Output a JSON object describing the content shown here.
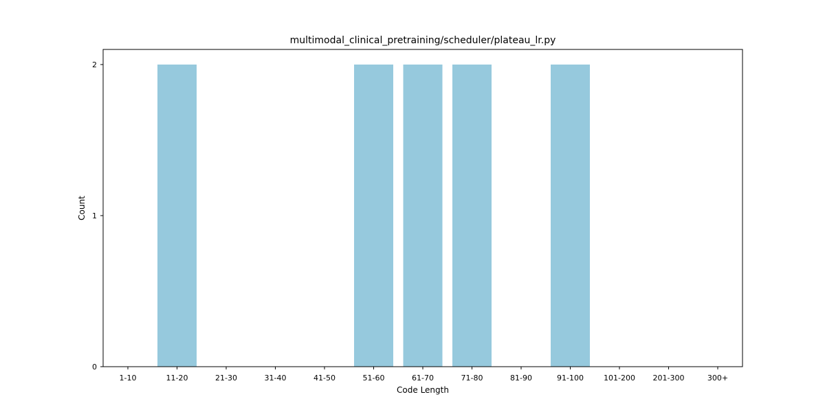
{
  "chart_data": {
    "type": "bar",
    "title": "multimodal_clinical_pretraining/scheduler/plateau_lr.py",
    "xlabel": "Code Length",
    "ylabel": "Count",
    "categories": [
      "1-10",
      "11-20",
      "21-30",
      "31-40",
      "41-50",
      "51-60",
      "61-70",
      "71-80",
      "81-90",
      "91-100",
      "101-200",
      "201-300",
      "300+"
    ],
    "values": [
      0,
      2,
      0,
      0,
      0,
      2,
      2,
      2,
      0,
      2,
      0,
      0,
      0
    ],
    "ylim": [
      0,
      2.1
    ],
    "yticks": [
      0,
      1,
      2
    ],
    "bar_color": "#96c9dd",
    "grid": false,
    "legend": "none"
  }
}
